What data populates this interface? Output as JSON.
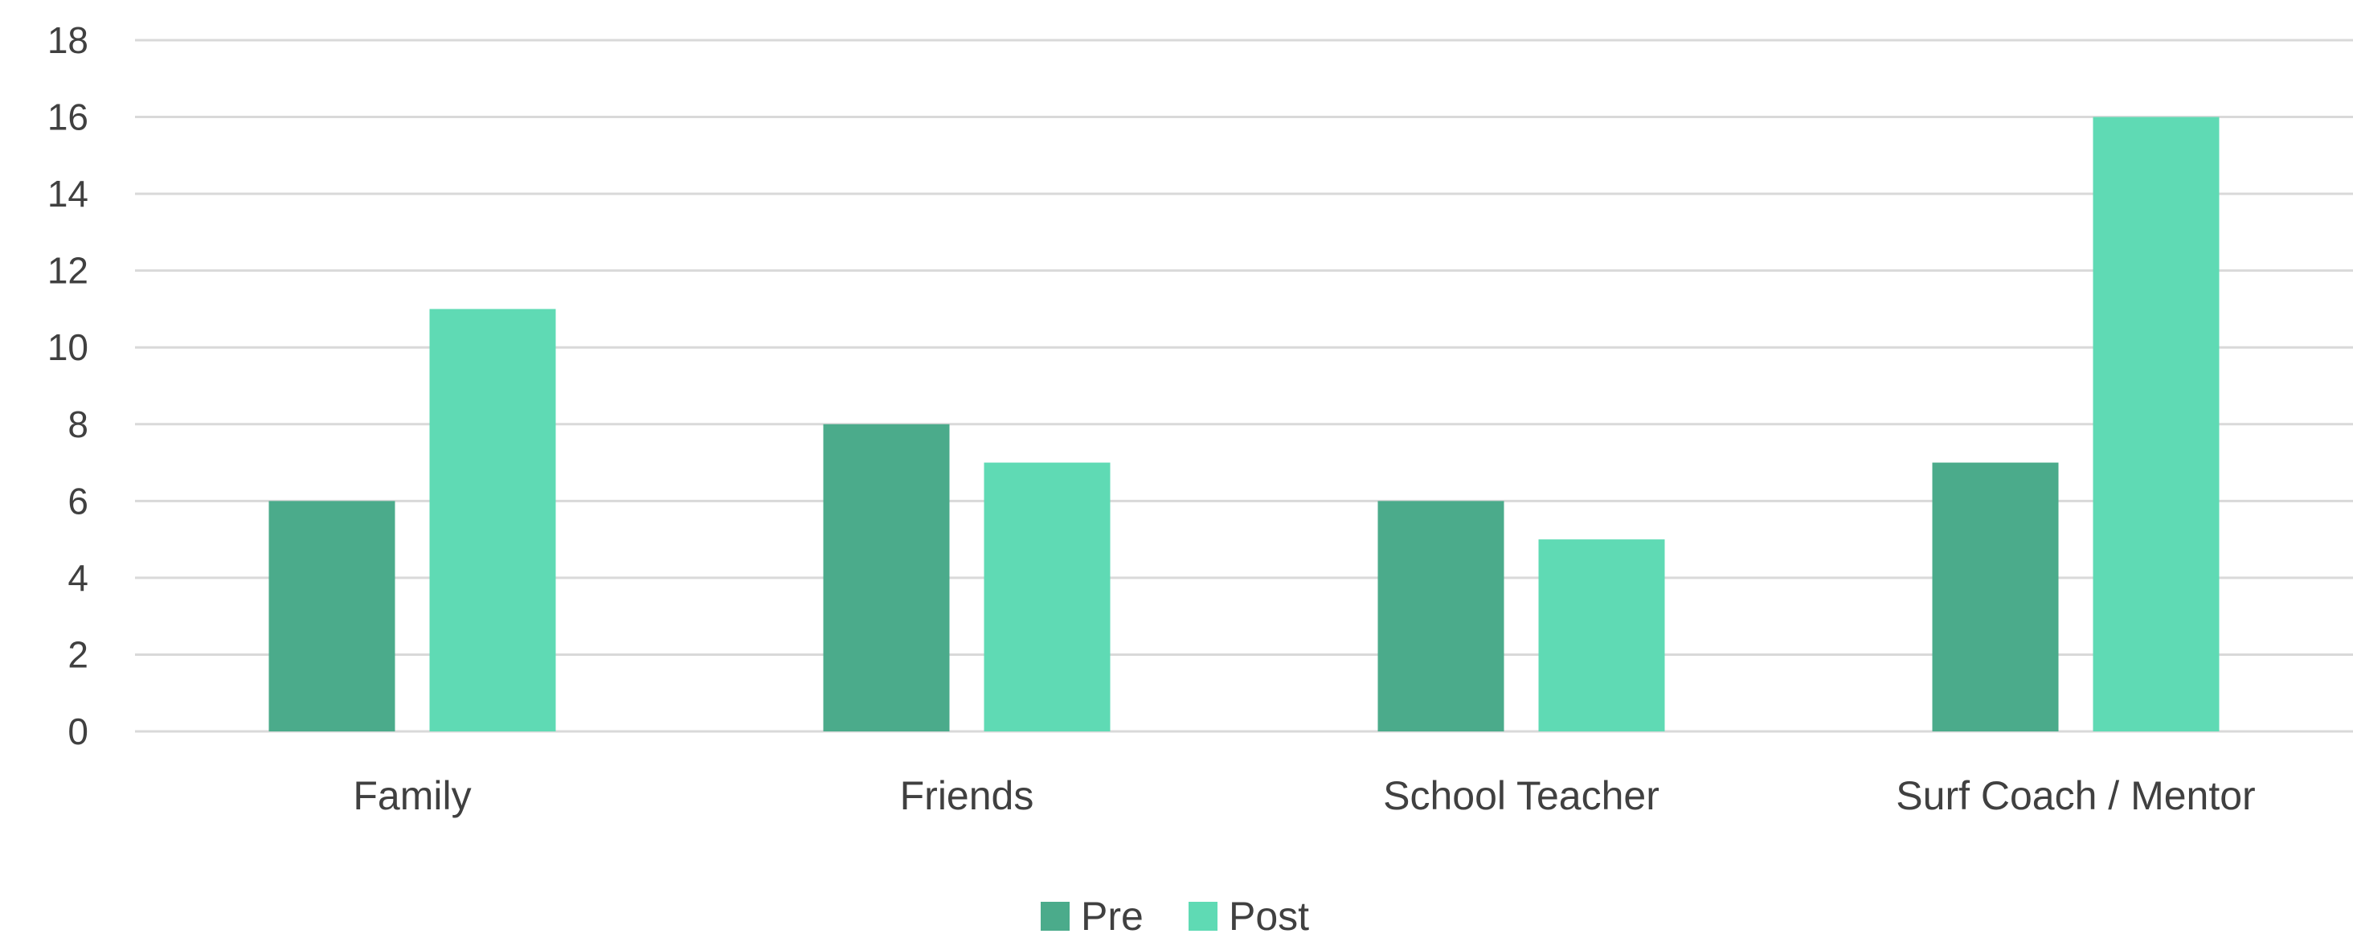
{
  "chart_data": {
    "type": "bar",
    "title": "",
    "xlabel": "",
    "ylabel": "",
    "categories": [
      "Family",
      "Friends",
      "School Teacher",
      "Surf Coach / Mentor"
    ],
    "series": [
      {
        "name": "Pre",
        "values": [
          6,
          8,
          6,
          7
        ],
        "color": "#4bab8b"
      },
      {
        "name": "Post",
        "values": [
          11,
          7,
          5,
          16
        ],
        "color": "#5fdab4"
      }
    ],
    "ylim": [
      0,
      18
    ],
    "yticks": [
      0,
      2,
      4,
      6,
      8,
      10,
      12,
      14,
      16,
      18
    ],
    "grid": true,
    "legend_position": "bottom-center",
    "colors": {
      "gridline": "#d9d9d9",
      "axis_text": "#404040"
    }
  }
}
